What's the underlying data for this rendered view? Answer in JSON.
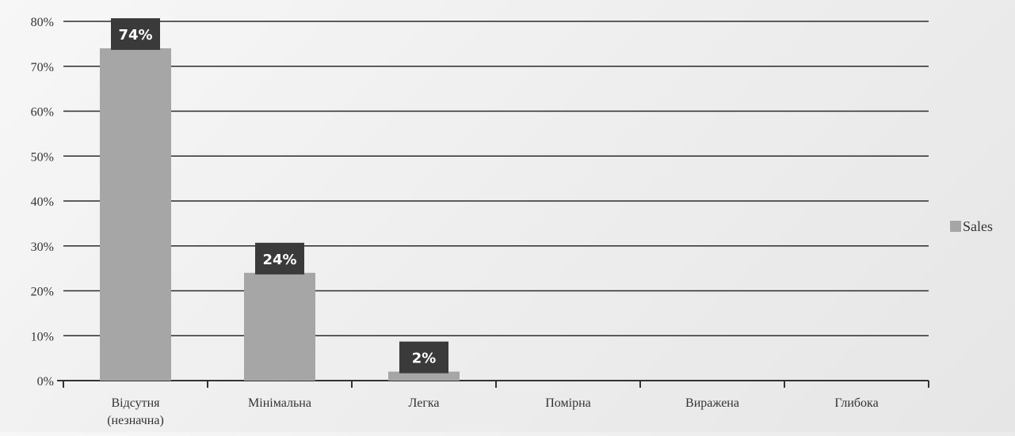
{
  "chart_data": {
    "type": "bar",
    "categories": [
      [
        "Відсутня",
        "(незначна)"
      ],
      [
        "Мінімальна"
      ],
      [
        "Легка"
      ],
      [
        "Помірна"
      ],
      [
        "Виражена"
      ],
      [
        "Глибока"
      ]
    ],
    "series": [
      {
        "name": "Sales",
        "values": [
          74,
          24,
          2,
          0,
          0,
          0
        ],
        "color": "#a6a6a6"
      }
    ],
    "data_labels": [
      "74%",
      "24%",
      "2%",
      "",
      "",
      ""
    ],
    "y_ticks": [
      "0%",
      "10%",
      "20%",
      "30%",
      "40%",
      "50%",
      "60%",
      "70%",
      "80%"
    ],
    "ylim": [
      0,
      80
    ],
    "y_step": 10,
    "grid": true,
    "legend_position": "right",
    "title": "",
    "xlabel": "",
    "ylabel": "",
    "colors": {
      "bar": "#a6a6a6",
      "label_bg": "#3a3a3a",
      "grid": "#2b2b2b",
      "axis": "#333333"
    }
  }
}
